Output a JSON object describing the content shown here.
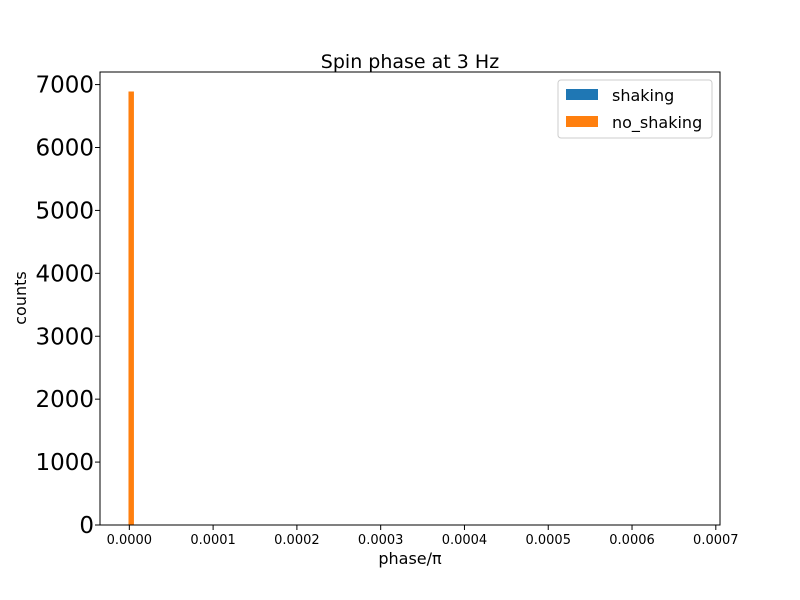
{
  "chart_data": {
    "type": "bar",
    "title": "Spin phase at 3 Hz",
    "xlabel": "phase/π",
    "ylabel": "counts",
    "xlim": [
      -3.5e-05,
      0.000705
    ],
    "ylim": [
      0,
      7200
    ],
    "xticks": [
      0.0,
      0.0001,
      0.0002,
      0.0003,
      0.0004,
      0.0005,
      0.0006,
      0.0007
    ],
    "xtick_labels": [
      "0.0000",
      "0.0001",
      "0.0002",
      "0.0003",
      "0.0004",
      "0.0005",
      "0.0006",
      "0.0007"
    ],
    "yticks": [
      0,
      1000,
      2000,
      3000,
      4000,
      5000,
      6000,
      7000
    ],
    "ytick_labels": [
      "0",
      "1000",
      "2000",
      "3000",
      "4000",
      "5000",
      "6000",
      "7000"
    ],
    "legend_position": "top-right",
    "grid": false,
    "series": [
      {
        "name": "shaking",
        "color": "#1f77b4",
        "bins": []
      },
      {
        "name": "no_shaking",
        "color": "#ff7f0e",
        "bins": [
          {
            "x0": -1e-06,
            "x1": 5.5e-06,
            "count": 6890
          }
        ]
      }
    ]
  }
}
